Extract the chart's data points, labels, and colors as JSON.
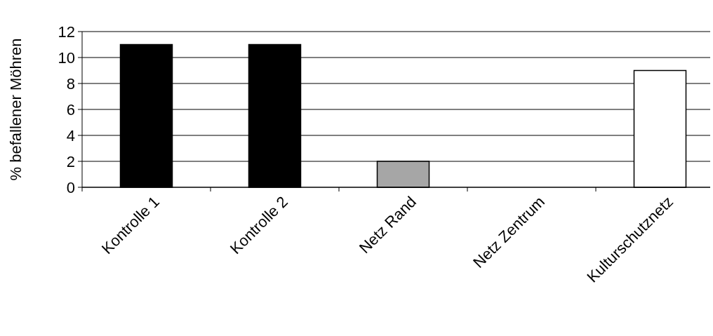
{
  "chart_data": {
    "type": "bar",
    "ylabel": "% befallener Möhren",
    "categories": [
      "Kontrolle 1",
      "Kontrolle 2",
      "Netz Rand",
      "Netz Zentrum",
      "Kulturschutznetz"
    ],
    "values": [
      11,
      11,
      2,
      0,
      9
    ],
    "colors": [
      "#000000",
      "#000000",
      "#a6a6a6",
      "#ffffff",
      "#ffffff"
    ],
    "ylim": [
      0,
      12
    ],
    "yticks": [
      0,
      2,
      4,
      6,
      8,
      10,
      12
    ],
    "grid": "y"
  }
}
